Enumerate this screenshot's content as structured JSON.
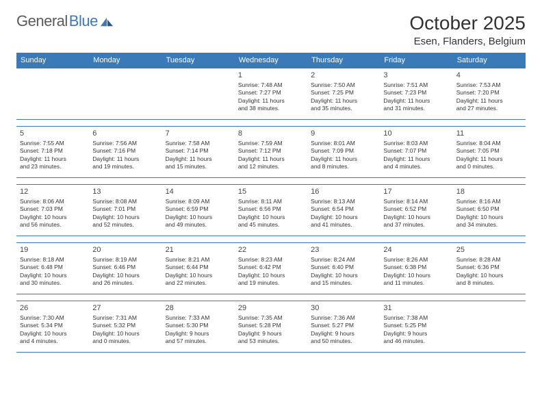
{
  "logo": {
    "text1": "General",
    "text2": "Blue"
  },
  "header": {
    "title": "October 2025",
    "location": "Esen, Flanders, Belgium"
  },
  "weekdays": [
    "Sunday",
    "Monday",
    "Tuesday",
    "Wednesday",
    "Thursday",
    "Friday",
    "Saturday"
  ],
  "colors": {
    "accent": "#3a7ab8",
    "text": "#333333",
    "bg": "#ffffff"
  },
  "layout": {
    "cols": 7,
    "rows": 5
  },
  "weeks": [
    [
      {
        "n": "",
        "l1": "",
        "l2": "",
        "l3": "",
        "l4": ""
      },
      {
        "n": "",
        "l1": "",
        "l2": "",
        "l3": "",
        "l4": ""
      },
      {
        "n": "",
        "l1": "",
        "l2": "",
        "l3": "",
        "l4": ""
      },
      {
        "n": "1",
        "l1": "Sunrise: 7:48 AM",
        "l2": "Sunset: 7:27 PM",
        "l3": "Daylight: 11 hours",
        "l4": "and 38 minutes."
      },
      {
        "n": "2",
        "l1": "Sunrise: 7:50 AM",
        "l2": "Sunset: 7:25 PM",
        "l3": "Daylight: 11 hours",
        "l4": "and 35 minutes."
      },
      {
        "n": "3",
        "l1": "Sunrise: 7:51 AM",
        "l2": "Sunset: 7:23 PM",
        "l3": "Daylight: 11 hours",
        "l4": "and 31 minutes."
      },
      {
        "n": "4",
        "l1": "Sunrise: 7:53 AM",
        "l2": "Sunset: 7:20 PM",
        "l3": "Daylight: 11 hours",
        "l4": "and 27 minutes."
      }
    ],
    [
      {
        "n": "5",
        "l1": "Sunrise: 7:55 AM",
        "l2": "Sunset: 7:18 PM",
        "l3": "Daylight: 11 hours",
        "l4": "and 23 minutes."
      },
      {
        "n": "6",
        "l1": "Sunrise: 7:56 AM",
        "l2": "Sunset: 7:16 PM",
        "l3": "Daylight: 11 hours",
        "l4": "and 19 minutes."
      },
      {
        "n": "7",
        "l1": "Sunrise: 7:58 AM",
        "l2": "Sunset: 7:14 PM",
        "l3": "Daylight: 11 hours",
        "l4": "and 15 minutes."
      },
      {
        "n": "8",
        "l1": "Sunrise: 7:59 AM",
        "l2": "Sunset: 7:12 PM",
        "l3": "Daylight: 11 hours",
        "l4": "and 12 minutes."
      },
      {
        "n": "9",
        "l1": "Sunrise: 8:01 AM",
        "l2": "Sunset: 7:09 PM",
        "l3": "Daylight: 11 hours",
        "l4": "and 8 minutes."
      },
      {
        "n": "10",
        "l1": "Sunrise: 8:03 AM",
        "l2": "Sunset: 7:07 PM",
        "l3": "Daylight: 11 hours",
        "l4": "and 4 minutes."
      },
      {
        "n": "11",
        "l1": "Sunrise: 8:04 AM",
        "l2": "Sunset: 7:05 PM",
        "l3": "Daylight: 11 hours",
        "l4": "and 0 minutes."
      }
    ],
    [
      {
        "n": "12",
        "l1": "Sunrise: 8:06 AM",
        "l2": "Sunset: 7:03 PM",
        "l3": "Daylight: 10 hours",
        "l4": "and 56 minutes."
      },
      {
        "n": "13",
        "l1": "Sunrise: 8:08 AM",
        "l2": "Sunset: 7:01 PM",
        "l3": "Daylight: 10 hours",
        "l4": "and 52 minutes."
      },
      {
        "n": "14",
        "l1": "Sunrise: 8:09 AM",
        "l2": "Sunset: 6:59 PM",
        "l3": "Daylight: 10 hours",
        "l4": "and 49 minutes."
      },
      {
        "n": "15",
        "l1": "Sunrise: 8:11 AM",
        "l2": "Sunset: 6:56 PM",
        "l3": "Daylight: 10 hours",
        "l4": "and 45 minutes."
      },
      {
        "n": "16",
        "l1": "Sunrise: 8:13 AM",
        "l2": "Sunset: 6:54 PM",
        "l3": "Daylight: 10 hours",
        "l4": "and 41 minutes."
      },
      {
        "n": "17",
        "l1": "Sunrise: 8:14 AM",
        "l2": "Sunset: 6:52 PM",
        "l3": "Daylight: 10 hours",
        "l4": "and 37 minutes."
      },
      {
        "n": "18",
        "l1": "Sunrise: 8:16 AM",
        "l2": "Sunset: 6:50 PM",
        "l3": "Daylight: 10 hours",
        "l4": "and 34 minutes."
      }
    ],
    [
      {
        "n": "19",
        "l1": "Sunrise: 8:18 AM",
        "l2": "Sunset: 6:48 PM",
        "l3": "Daylight: 10 hours",
        "l4": "and 30 minutes."
      },
      {
        "n": "20",
        "l1": "Sunrise: 8:19 AM",
        "l2": "Sunset: 6:46 PM",
        "l3": "Daylight: 10 hours",
        "l4": "and 26 minutes."
      },
      {
        "n": "21",
        "l1": "Sunrise: 8:21 AM",
        "l2": "Sunset: 6:44 PM",
        "l3": "Daylight: 10 hours",
        "l4": "and 22 minutes."
      },
      {
        "n": "22",
        "l1": "Sunrise: 8:23 AM",
        "l2": "Sunset: 6:42 PM",
        "l3": "Daylight: 10 hours",
        "l4": "and 19 minutes."
      },
      {
        "n": "23",
        "l1": "Sunrise: 8:24 AM",
        "l2": "Sunset: 6:40 PM",
        "l3": "Daylight: 10 hours",
        "l4": "and 15 minutes."
      },
      {
        "n": "24",
        "l1": "Sunrise: 8:26 AM",
        "l2": "Sunset: 6:38 PM",
        "l3": "Daylight: 10 hours",
        "l4": "and 11 minutes."
      },
      {
        "n": "25",
        "l1": "Sunrise: 8:28 AM",
        "l2": "Sunset: 6:36 PM",
        "l3": "Daylight: 10 hours",
        "l4": "and 8 minutes."
      }
    ],
    [
      {
        "n": "26",
        "l1": "Sunrise: 7:30 AM",
        "l2": "Sunset: 5:34 PM",
        "l3": "Daylight: 10 hours",
        "l4": "and 4 minutes."
      },
      {
        "n": "27",
        "l1": "Sunrise: 7:31 AM",
        "l2": "Sunset: 5:32 PM",
        "l3": "Daylight: 10 hours",
        "l4": "and 0 minutes."
      },
      {
        "n": "28",
        "l1": "Sunrise: 7:33 AM",
        "l2": "Sunset: 5:30 PM",
        "l3": "Daylight: 9 hours",
        "l4": "and 57 minutes."
      },
      {
        "n": "29",
        "l1": "Sunrise: 7:35 AM",
        "l2": "Sunset: 5:28 PM",
        "l3": "Daylight: 9 hours",
        "l4": "and 53 minutes."
      },
      {
        "n": "30",
        "l1": "Sunrise: 7:36 AM",
        "l2": "Sunset: 5:27 PM",
        "l3": "Daylight: 9 hours",
        "l4": "and 50 minutes."
      },
      {
        "n": "31",
        "l1": "Sunrise: 7:38 AM",
        "l2": "Sunset: 5:25 PM",
        "l3": "Daylight: 9 hours",
        "l4": "and 46 minutes."
      },
      {
        "n": "",
        "l1": "",
        "l2": "",
        "l3": "",
        "l4": ""
      }
    ]
  ]
}
